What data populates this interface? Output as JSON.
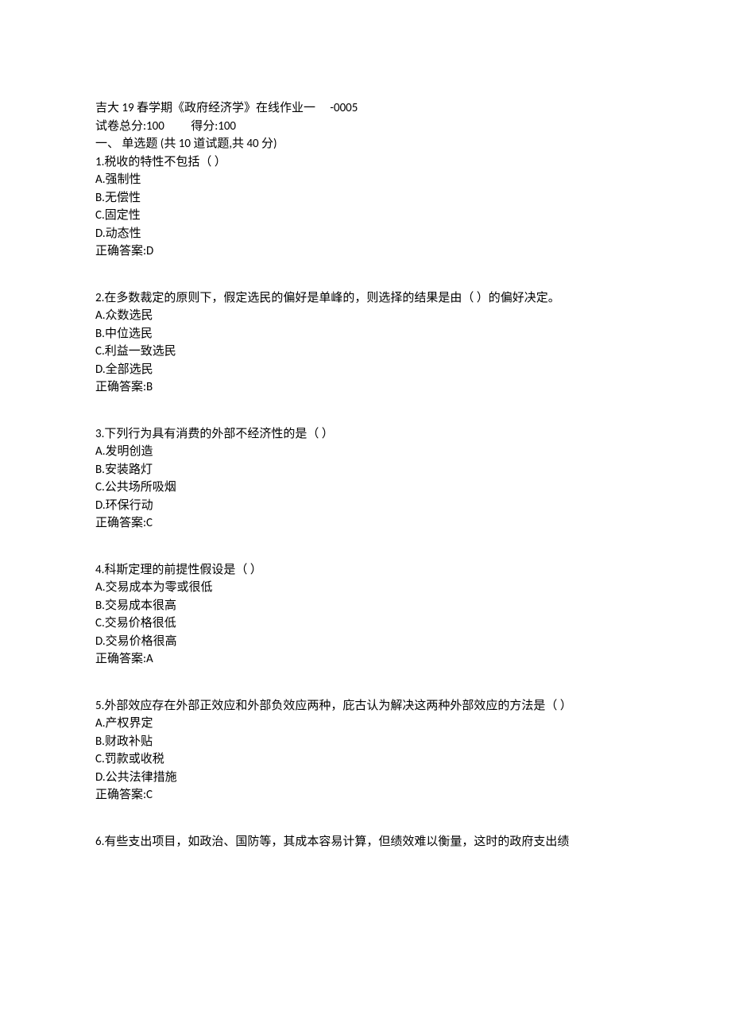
{
  "header": {
    "title": "吉大 19 春学期《政府经济学》在线作业一　 -0005",
    "scoreLine": "试卷总分:100　　 得分:100",
    "sectionHeader": "一、  单选题  (共  10  道试题,共  40  分)"
  },
  "questions": [
    {
      "stem": "1.税收的特性不包括（ ）",
      "options": [
        "A.强制性",
        "B.无偿性",
        "C.固定性",
        "D.动态性"
      ],
      "answer": "正确答案:D"
    },
    {
      "stem": "2.在多数裁定的原则下，假定选民的偏好是单峰的，则选择的结果是由（ ）的偏好决定。",
      "options": [
        "A.众数选民",
        "B.中位选民",
        "C.利益一致选民",
        "D.全部选民"
      ],
      "answer": "正确答案:B"
    },
    {
      "stem": "3.下列行为具有消费的外部不经济性的是（ ）",
      "options": [
        "A.发明创造",
        "B.安装路灯",
        "C.公共场所吸烟",
        "D.环保行动"
      ],
      "answer": "正确答案:C"
    },
    {
      "stem": "4.科斯定理的前提性假设是（ ）",
      "options": [
        "A.交易成本为零或很低",
        "B.交易成本很高",
        "C.交易价格很低",
        "D.交易价格很高"
      ],
      "answer": "正确答案:A"
    },
    {
      "stem": "5.外部效应存在外部正效应和外部负效应两种，庇古认为解决这两种外部效应的方法是（ ）",
      "options": [
        "A.产权界定",
        "B.财政补贴",
        "C.罚款或收税",
        "D.公共法律措施"
      ],
      "answer": "正确答案:C"
    },
    {
      "stem": "6.有些支出项目，如政治、国防等，其成本容易计算，但绩效难以衡量，这时的政府支出绩",
      "options": [],
      "answer": null
    }
  ]
}
